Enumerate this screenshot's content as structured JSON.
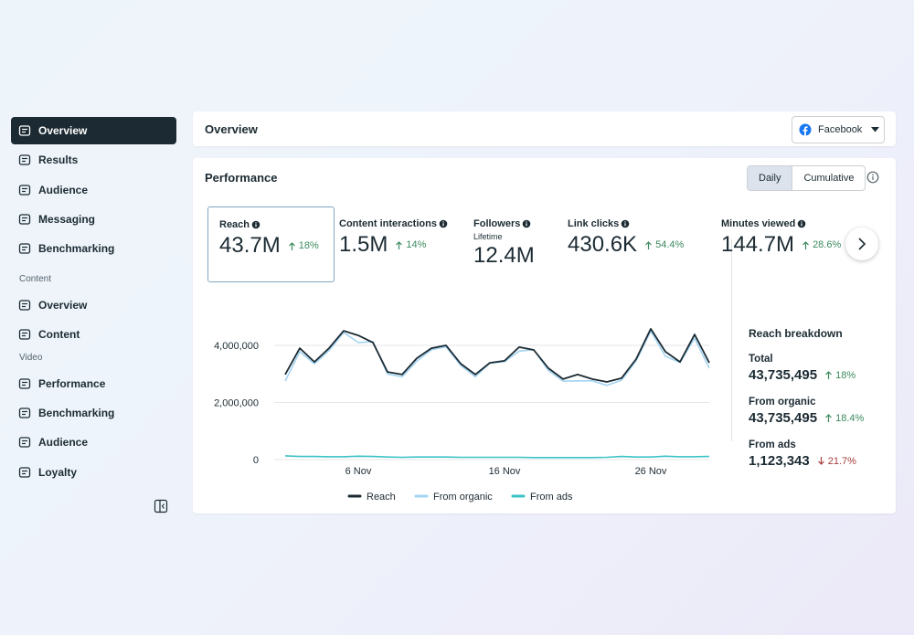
{
  "sidebar": {
    "items": [
      "Overview",
      "Results",
      "Audience",
      "Messaging",
      "Benchmarking"
    ],
    "active": 0,
    "sections": [
      {
        "heading": "Content",
        "items": [
          "Overview",
          "Content"
        ]
      },
      {
        "heading": "Video",
        "items": [
          "Performance",
          "Benchmarking",
          "Audience",
          "Loyalty"
        ]
      }
    ]
  },
  "header": {
    "title": "Overview",
    "platform": "Facebook"
  },
  "performance": {
    "title": "Performance",
    "toggle": [
      "Daily",
      "Cumulative"
    ],
    "toggle_active": 0,
    "metrics": [
      {
        "label": "Reach",
        "value": "43.7M",
        "change": "18%",
        "trend": "up"
      },
      {
        "label": "Content interactions",
        "value": "1.5M",
        "change": "14%",
        "trend": "up"
      },
      {
        "label": "Followers",
        "sublabel": "Lifetime",
        "value": "12.4M"
      },
      {
        "label": "Link clicks",
        "value": "430.6K",
        "change": "54.4%",
        "trend": "up"
      },
      {
        "label": "Minutes viewed",
        "value": "144.7M",
        "change": "28.6%",
        "trend": "up"
      }
    ],
    "breakdown": {
      "title": "Reach breakdown",
      "rows": [
        {
          "label": "Total",
          "value": "43,735,495",
          "change": "18%",
          "trend": "up"
        },
        {
          "label": "From organic",
          "value": "43,735,495",
          "change": "18.4%",
          "trend": "up"
        },
        {
          "label": "From ads",
          "value": "1,123,343",
          "change": "21.7%",
          "trend": "down"
        }
      ]
    }
  },
  "chart_data": {
    "type": "line",
    "categories": [
      null,
      null,
      null,
      null,
      null,
      "6 Nov",
      null,
      null,
      null,
      null,
      null,
      null,
      null,
      null,
      null,
      "16 Nov",
      null,
      null,
      null,
      null,
      null,
      null,
      null,
      null,
      null,
      "26 Nov",
      null,
      null,
      null,
      null
    ],
    "series": [
      {
        "name": "Reach",
        "color": "#1c2b33",
        "values": [
          2980000,
          3900000,
          3420000,
          3900000,
          4510000,
          4350000,
          4100000,
          3070000,
          2980000,
          3550000,
          3900000,
          4000000,
          3360000,
          2980000,
          3390000,
          3460000,
          3940000,
          3840000,
          3200000,
          2820000,
          2980000,
          2820000,
          2720000,
          2850000,
          3520000,
          4580000,
          3780000,
          3420000,
          4380000,
          3390000
        ]
      },
      {
        "name": "From organic",
        "color": "#a3d4f2",
        "values": [
          2750000,
          3780000,
          3350000,
          3820000,
          4450000,
          4100000,
          4130000,
          3000000,
          2900000,
          3450000,
          3850000,
          3950000,
          3300000,
          2900000,
          3380000,
          3430000,
          3800000,
          3850000,
          3120000,
          2750000,
          2760000,
          2760000,
          2600000,
          2780000,
          3460000,
          4500000,
          3620000,
          3400000,
          4250000,
          3200000
        ]
      },
      {
        "name": "From ads",
        "color": "#3cc3c6",
        "values": [
          130000,
          110000,
          110000,
          100000,
          100000,
          120000,
          110000,
          90000,
          80000,
          90000,
          90000,
          90000,
          80000,
          80000,
          80000,
          80000,
          80000,
          70000,
          70000,
          70000,
          70000,
          70000,
          80000,
          110000,
          90000,
          90000,
          120000,
          100000,
          100000,
          110000
        ]
      }
    ],
    "ylim": [
      0,
      4800000
    ],
    "yticks": [
      0,
      {
        "value": 2000000,
        "label": "2,000,000"
      },
      {
        "value": 4000000,
        "label": "4,000,000"
      }
    ],
    "grid": true,
    "legend": "bottom"
  }
}
